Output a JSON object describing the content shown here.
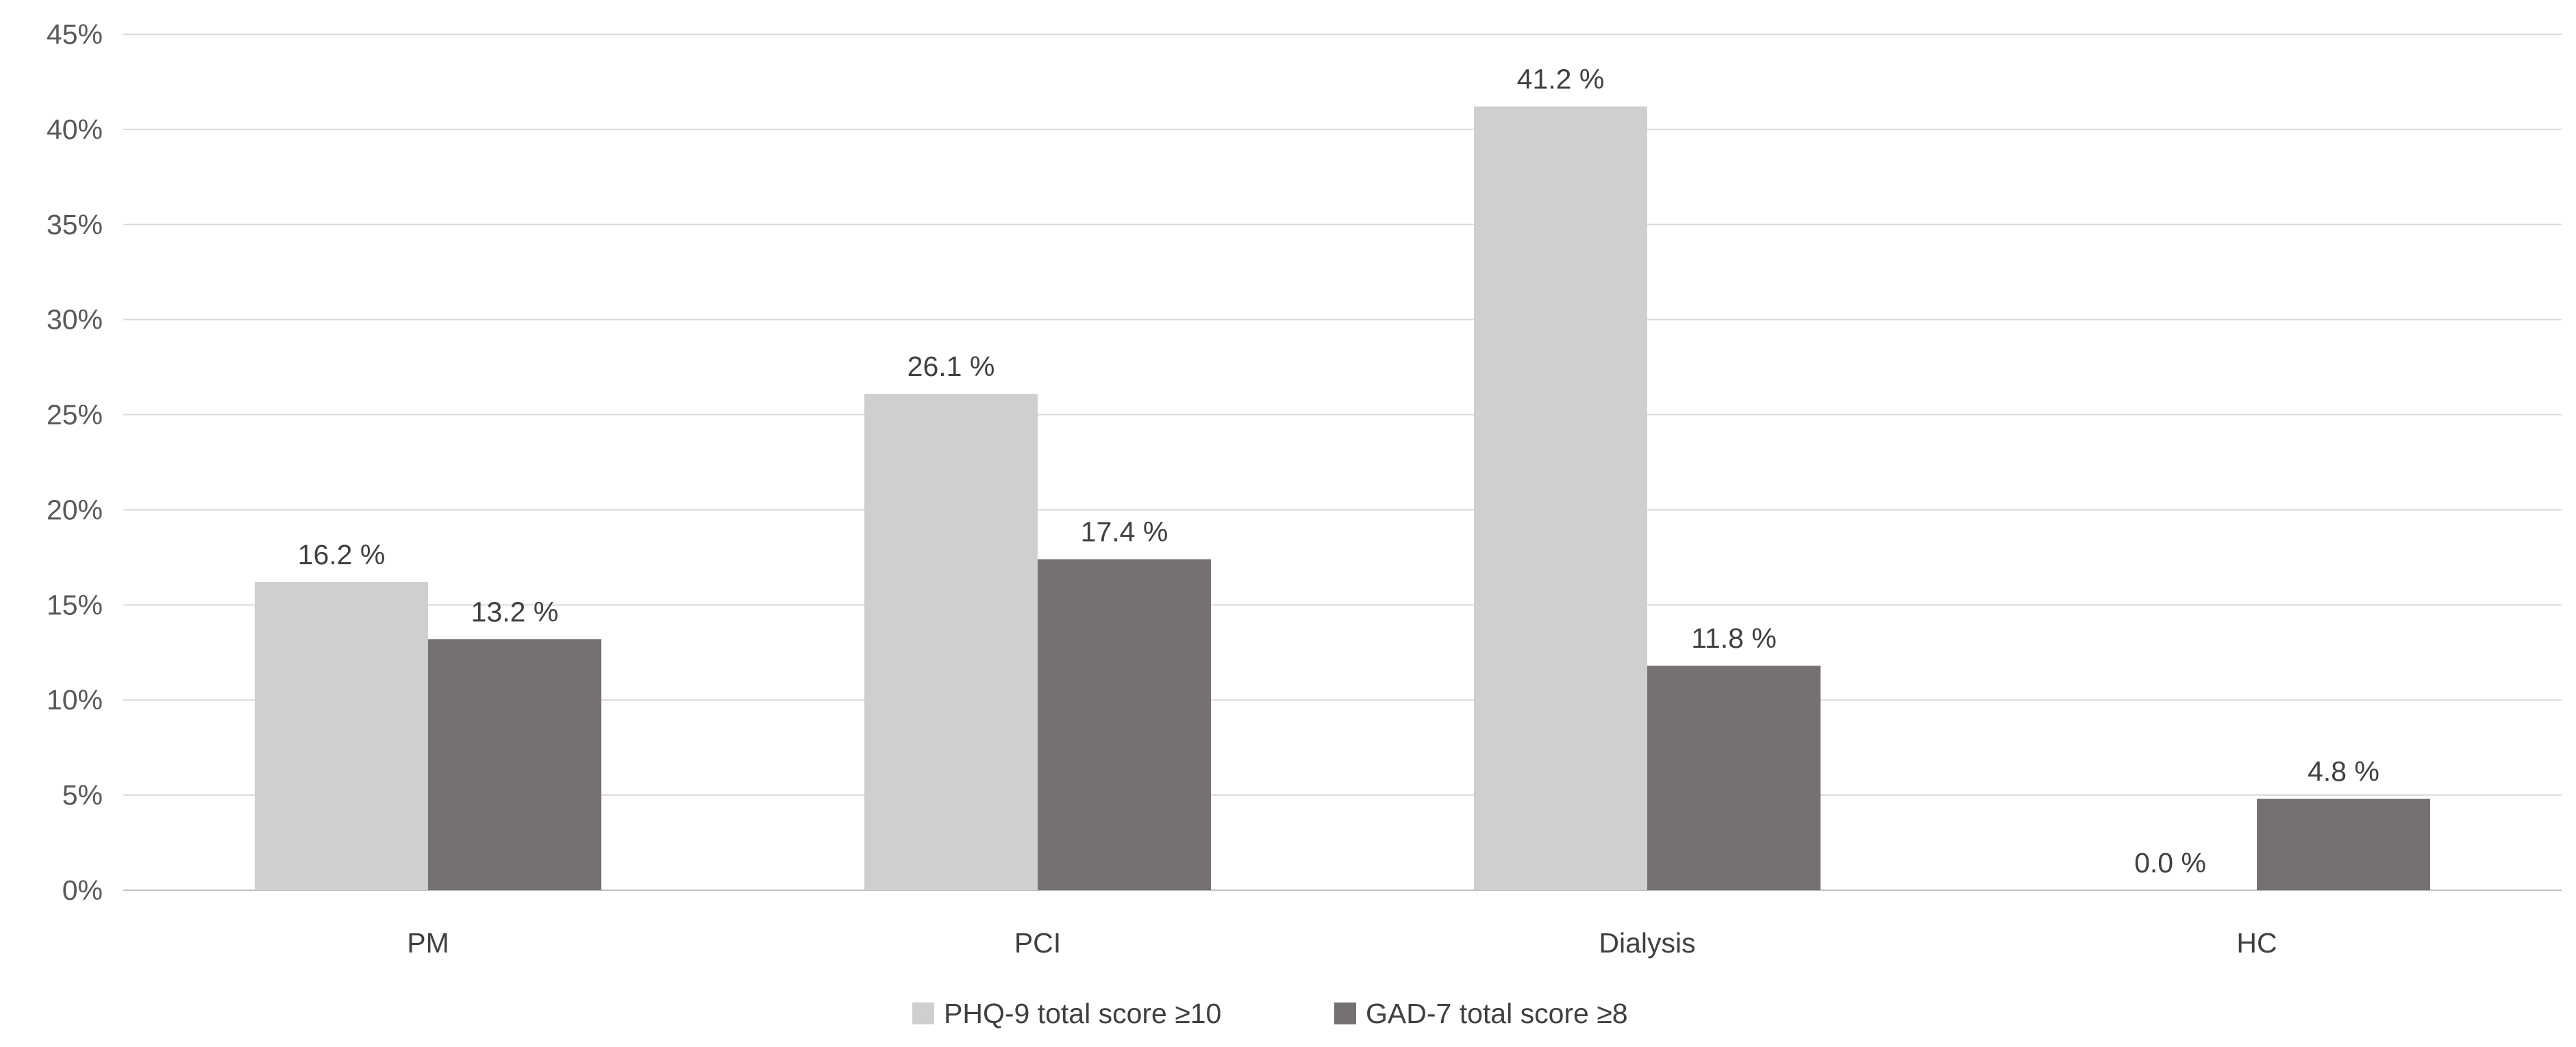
{
  "chart_data": {
    "type": "bar",
    "title": "",
    "xlabel": "",
    "ylabel": "",
    "categories": [
      "PM",
      "PCI",
      "Dialysis",
      "HC"
    ],
    "series": [
      {
        "name": "PHQ-9 total score ≥10",
        "values": [
          16.2,
          26.1,
          41.2,
          0.0
        ],
        "labels": [
          "16.2 %",
          "26.1 %",
          "41.2 %",
          "0.0 %"
        ],
        "color": "#d0cfcf"
      },
      {
        "name": "GAD-7 total score ≥8",
        "values": [
          13.2,
          17.4,
          11.8,
          4.8
        ],
        "labels": [
          "13.2 %",
          "17.4 %",
          "11.8 %",
          "4.8 %"
        ],
        "color": "#767171"
      }
    ],
    "ylim": [
      0,
      45
    ],
    "yticks": [
      0,
      5,
      10,
      15,
      20,
      25,
      30,
      35,
      40,
      45
    ],
    "ytick_labels": [
      "0%",
      "5%",
      "10%",
      "15%",
      "20%",
      "25%",
      "30%",
      "35%",
      "40%",
      "45%"
    ],
    "grid": true,
    "legend_position": "bottom"
  }
}
